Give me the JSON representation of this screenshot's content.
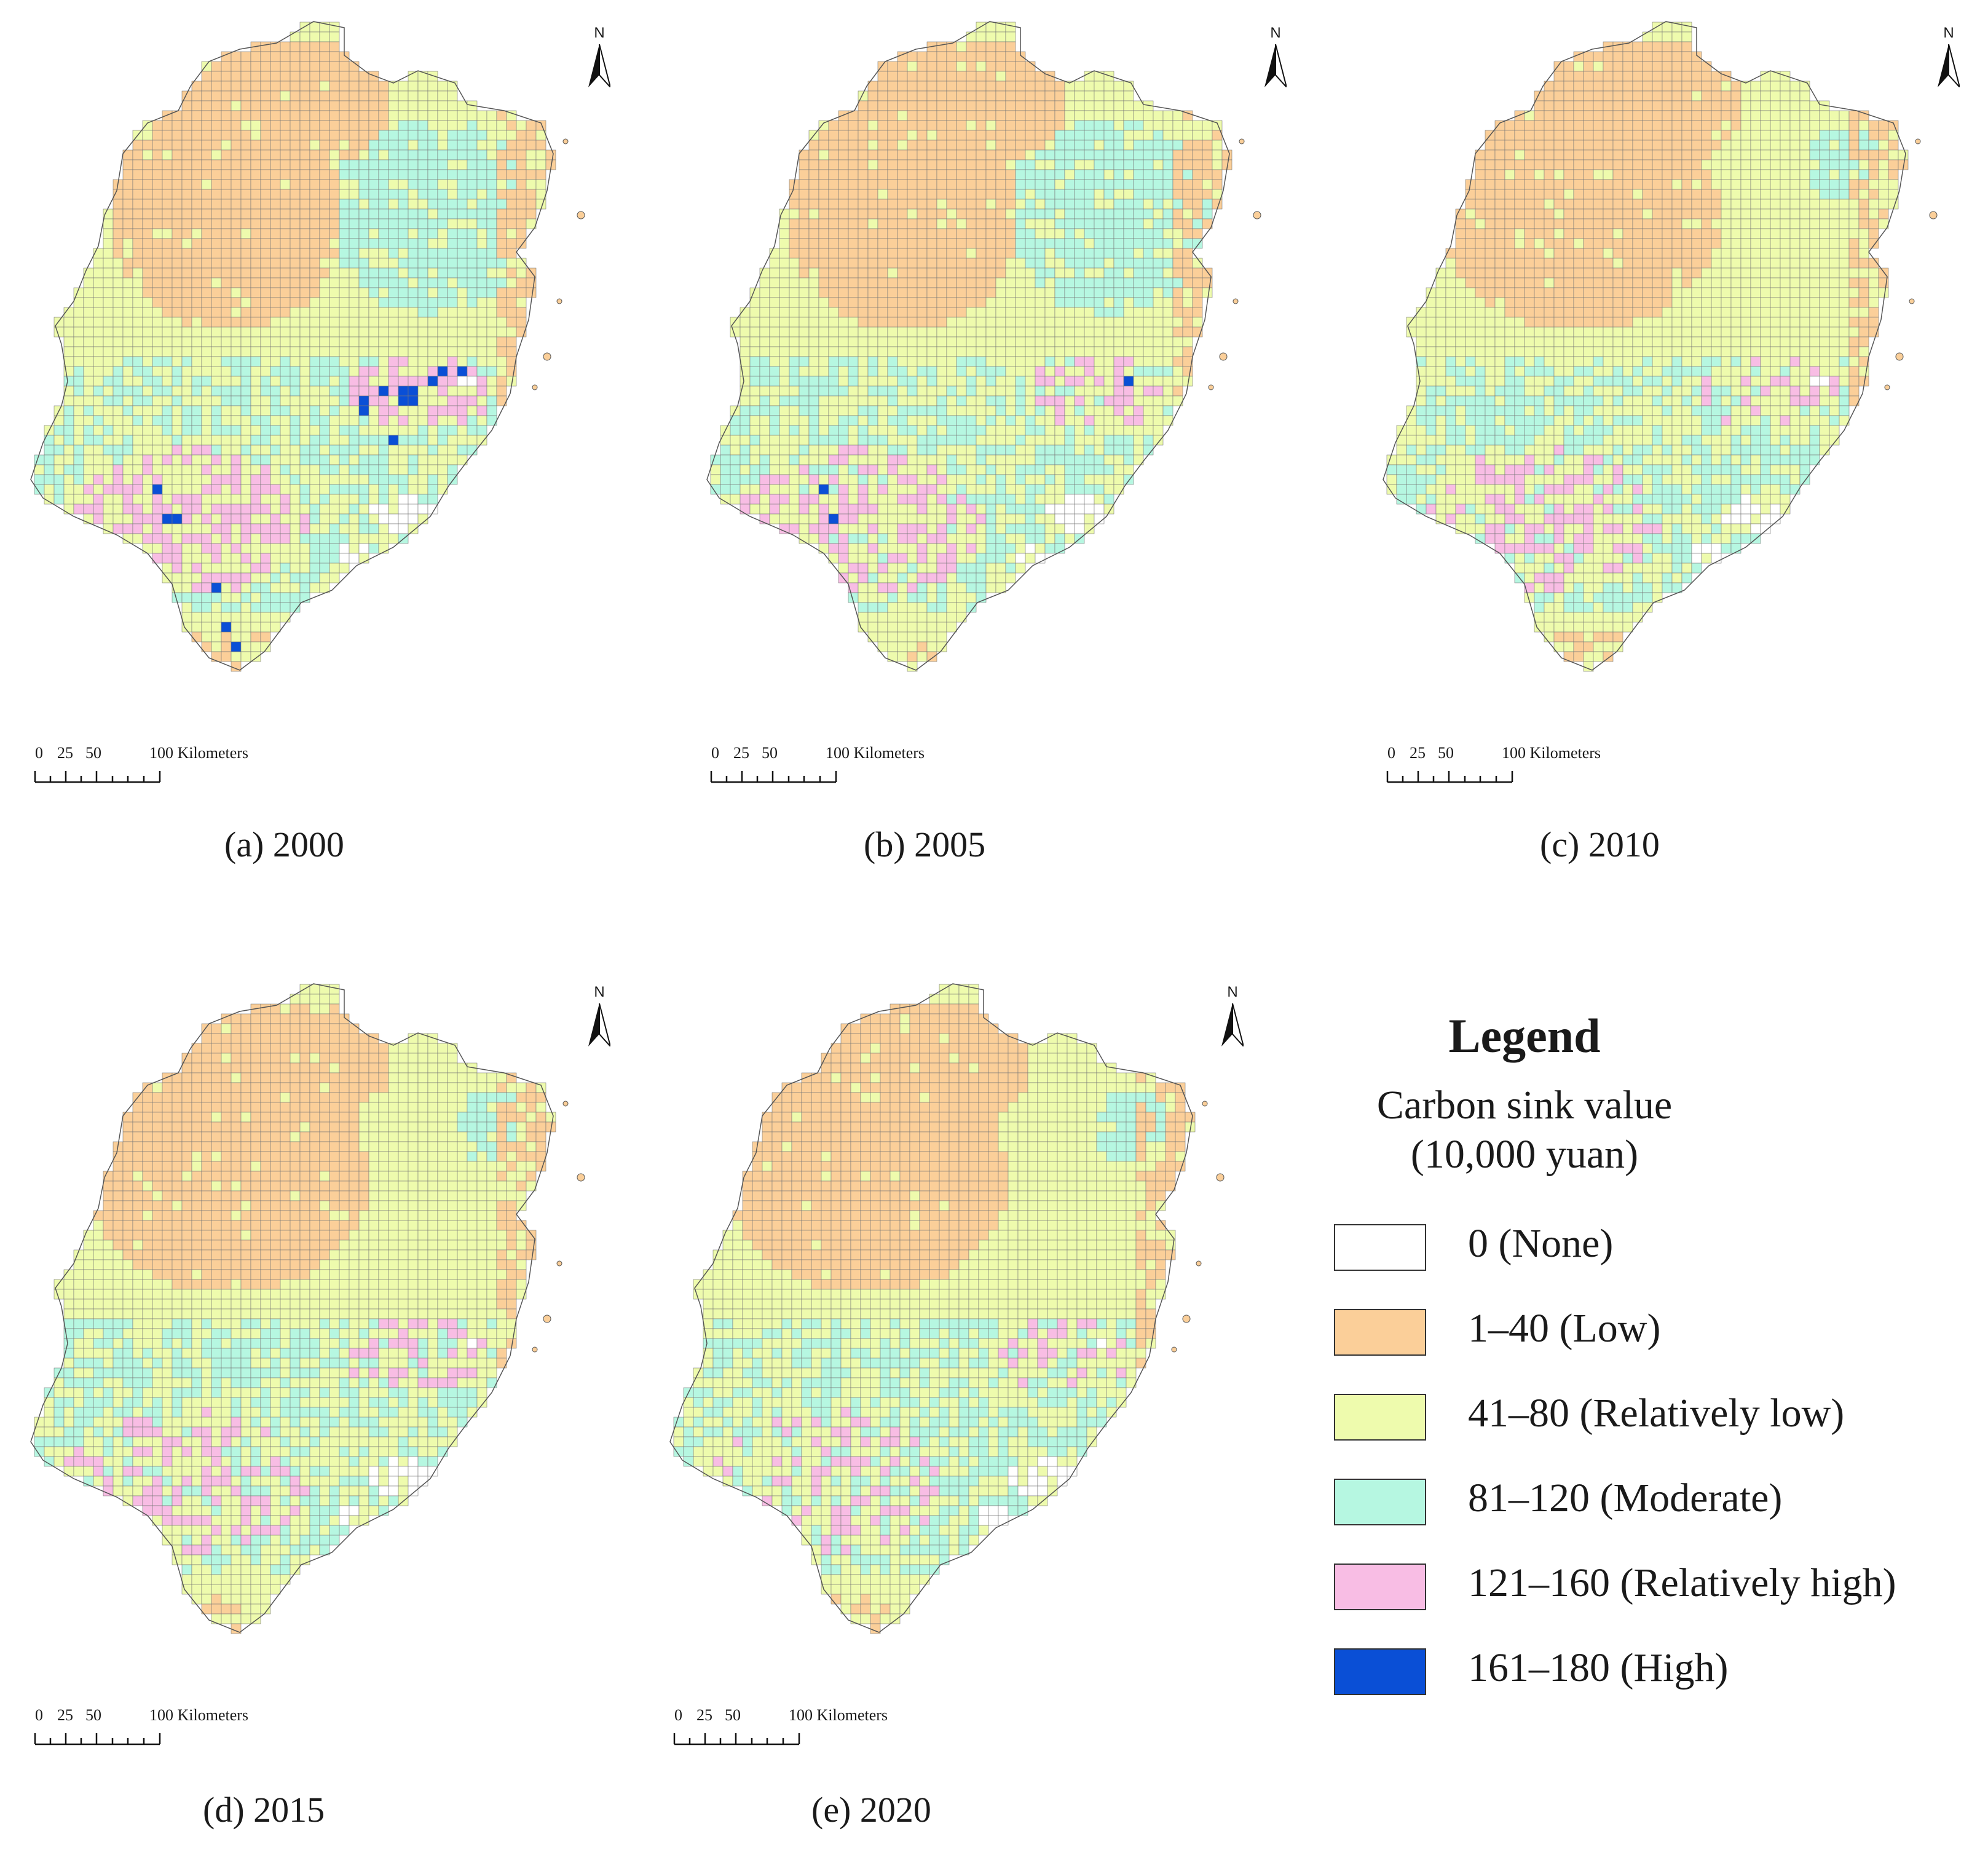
{
  "colors": {
    "none": "#ffffff",
    "low": "#fbcf99",
    "relatively_low": "#eefbad",
    "moderate": "#b6f7e1",
    "relatively_high": "#f8bde4",
    "high": "#0a4fd6",
    "grid": "#777777",
    "outline": "#555555"
  },
  "panels": [
    {
      "caption": "(a) 2000",
      "north_label": "N",
      "scale": {
        "ticks": [
          "0",
          "25",
          "50",
          "100 Kilometers"
        ]
      }
    },
    {
      "caption": "(b) 2005",
      "north_label": "N",
      "scale": {
        "ticks": [
          "0",
          "25",
          "50",
          "100 Kilometers"
        ]
      }
    },
    {
      "caption": "(c) 2010",
      "north_label": "N",
      "scale": {
        "ticks": [
          "0",
          "25",
          "50",
          "100 Kilometers"
        ]
      }
    },
    {
      "caption": "(d) 2015",
      "north_label": "N",
      "scale": {
        "ticks": [
          "0",
          "25",
          "50",
          "100 Kilometers"
        ]
      }
    },
    {
      "caption": "(e) 2020",
      "north_label": "N",
      "scale": {
        "ticks": [
          "0",
          "25",
          "50",
          "100 Kilometers"
        ]
      }
    }
  ],
  "legend": {
    "title": "Legend",
    "subtitle_line1": "Carbon sink value",
    "subtitle_line2": "(10,000 yuan)",
    "items": [
      {
        "label": "0 (None)",
        "color": "#ffffff"
      },
      {
        "label": "1–40 (Low)",
        "color": "#fbcf99"
      },
      {
        "label": "41–80 (Relatively low)",
        "color": "#eefbad"
      },
      {
        "label": "81–120 (Moderate)",
        "color": "#b6f7e1"
      },
      {
        "label": "121–160 (Relatively high)",
        "color": "#f8bde4"
      },
      {
        "label": "161–180 (High)",
        "color": "#0a4fd6"
      }
    ]
  }
}
